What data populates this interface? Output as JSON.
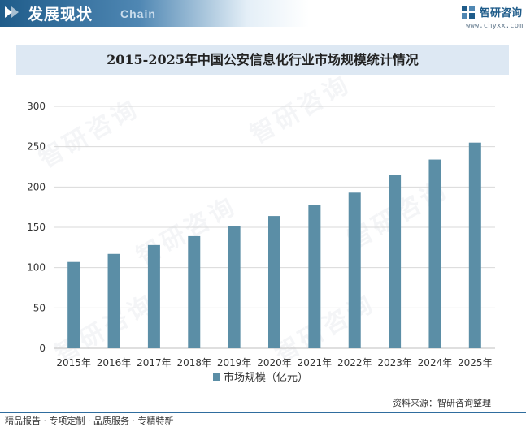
{
  "header": {
    "section_title": "发展现状",
    "section_subtitle": "Chain",
    "brand_name": "智研咨询",
    "brand_url": "www.chyxx.com"
  },
  "chart_data": {
    "type": "bar",
    "title": "2015-2025年中国公安信息化行业市场规模统计情况",
    "categories": [
      "2015年",
      "2016年",
      "2017年",
      "2018年",
      "2019年",
      "2020年",
      "2021年",
      "2022年",
      "2023年",
      "2024年",
      "2025年"
    ],
    "series": [
      {
        "name": "市场规模（亿元）",
        "values": [
          107,
          117,
          128,
          139,
          151,
          164,
          178,
          193,
          215,
          234,
          255
        ]
      }
    ],
    "yticks": [
      0,
      50,
      100,
      150,
      200,
      250,
      300
    ],
    "ylim": [
      0,
      300
    ],
    "grid": true,
    "legend_position": "bottom",
    "bar_color": "#5b8ea6"
  },
  "footer": {
    "left_text": "精品报告 · 专项定制 · 品质服务 · 专精特新",
    "source": "资料来源：智研咨询整理"
  },
  "colors": {
    "header_blue": "#1f5c8a",
    "title_bg": "#dde8f3",
    "grid": "#d9d9d9"
  }
}
